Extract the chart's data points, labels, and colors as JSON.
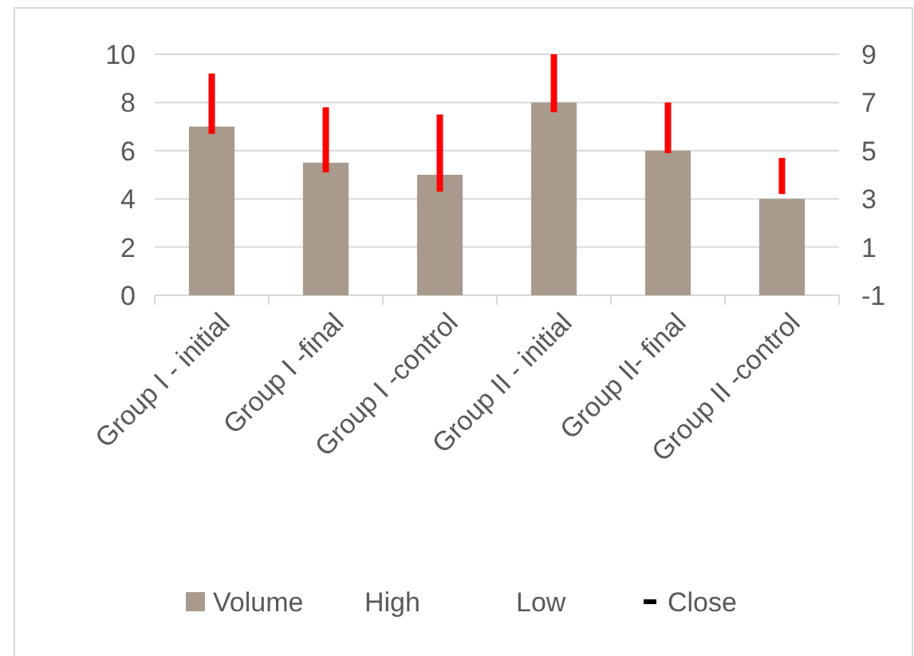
{
  "chart_data": {
    "type": "bar",
    "categories": [
      "Group I - initial",
      "Group I -final",
      "Group I -control",
      "Group II - initial",
      "Group II- final",
      "Group II -control"
    ],
    "series": [
      {
        "name": "Volume",
        "color": "#a89a8c",
        "values": [
          7,
          5.5,
          5,
          8,
          6,
          4
        ]
      },
      {
        "type": "bar",
        "axis": "y2",
        "color": "#ff0000",
        "base": [
          5.7,
          4.1,
          3.3,
          6.6,
          4.9,
          3.2
        ],
        "values": [
          2.5,
          2.7,
          3.2,
          2.4,
          2.1,
          1.5
        ]
      },
      {
        "name": "High",
        "type": "scatter",
        "marker": "none",
        "values": [
          null,
          null,
          null,
          null,
          null,
          null
        ]
      },
      {
        "name": "Low",
        "type": "scatter",
        "marker": "none",
        "values": [
          null,
          null,
          null,
          null,
          null,
          null
        ]
      },
      {
        "name": "Close",
        "type": "scatter",
        "marker": "dash",
        "color": "#000000",
        "values": [
          null,
          null,
          null,
          null,
          null,
          null
        ]
      }
    ],
    "ylim": [
      0,
      10
    ],
    "yticks": [
      0,
      2,
      4,
      6,
      8,
      10
    ],
    "y2lim": [
      -1,
      9
    ],
    "y2ticks": [
      -1,
      1,
      3,
      5,
      7,
      9
    ],
    "grid": "y",
    "legend": "bottom"
  }
}
